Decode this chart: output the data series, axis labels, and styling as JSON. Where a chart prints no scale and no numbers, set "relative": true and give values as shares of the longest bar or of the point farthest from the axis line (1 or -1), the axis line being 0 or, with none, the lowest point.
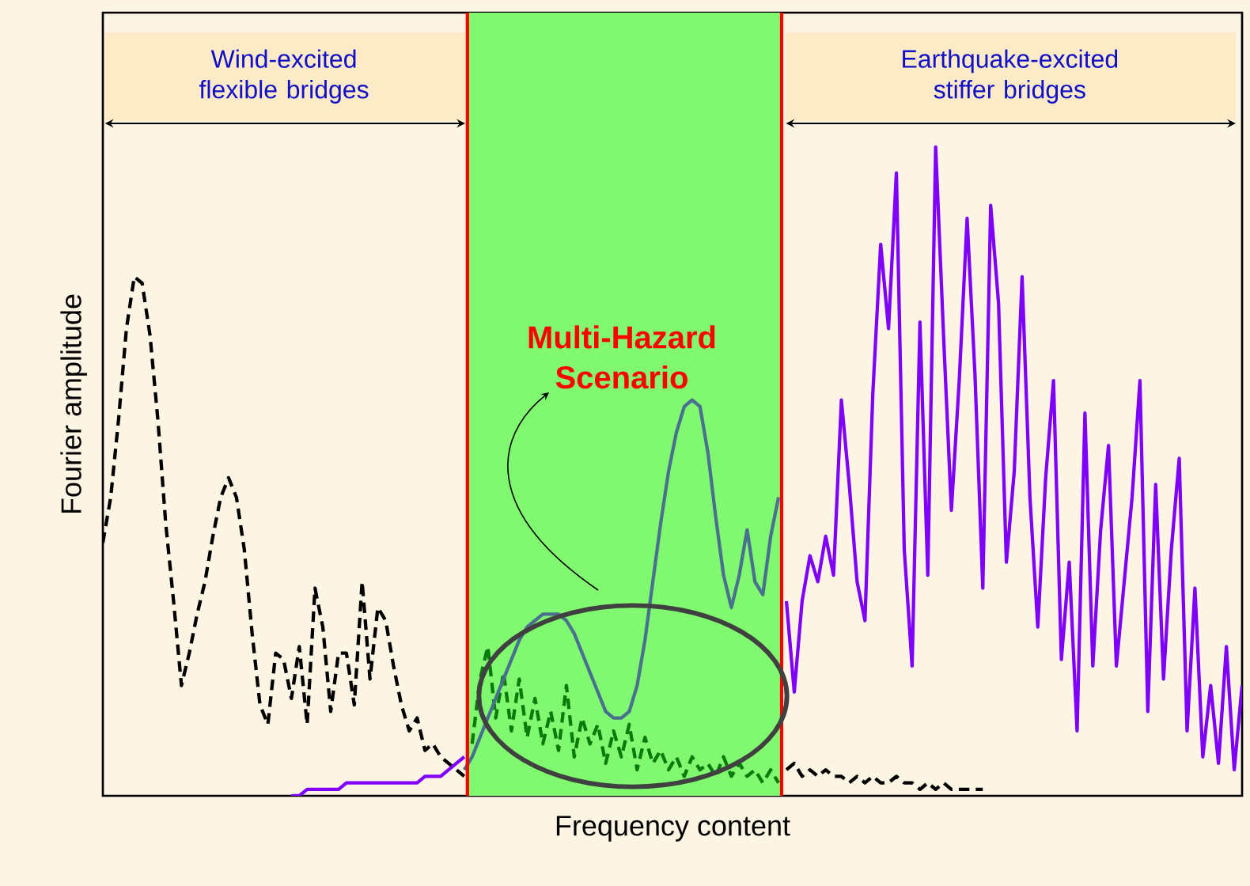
{
  "chart_data": {
    "type": "line",
    "relative": true,
    "xlabel": "Frequency content",
    "ylabel": "Fourier amplitude",
    "annotations": [
      "Wind-excited flexible bridges",
      "Earthquake-excited stiffer bridges",
      "Multi-Hazard Scenario"
    ],
    "categories": [
      null,
      null,
      null,
      null,
      null,
      null,
      null,
      null,
      null,
      null,
      null,
      null,
      null,
      null,
      null,
      null,
      null,
      null,
      null,
      null,
      null,
      null,
      null,
      null,
      null,
      null,
      null,
      null,
      null,
      null,
      null,
      null,
      null,
      null,
      null,
      null,
      null,
      null,
      null,
      null,
      null,
      null,
      null,
      null,
      null,
      null,
      null,
      null,
      null,
      null,
      null,
      null,
      null,
      null,
      null,
      null,
      null,
      null,
      null,
      null,
      null,
      null,
      null,
      null,
      null,
      null,
      null,
      null,
      null,
      null,
      null,
      null,
      null,
      null,
      null,
      null,
      null,
      null,
      null,
      null,
      null,
      null,
      null,
      null,
      null,
      null,
      null,
      null,
      null,
      null,
      null,
      null,
      null,
      null,
      null,
      null,
      null,
      null,
      null,
      null,
      null,
      null,
      null,
      null,
      null,
      null,
      null,
      null,
      null,
      null,
      null,
      null,
      null,
      null,
      null,
      null,
      null,
      null,
      null,
      null,
      null,
      null,
      null,
      null,
      null,
      null,
      null,
      null,
      null,
      null,
      null,
      null,
      null,
      null,
      null,
      null,
      null,
      null,
      null,
      null,
      null,
      null,
      null,
      null,
      null,
      null
    ],
    "series": [
      {
        "color": "#000000",
        "line_style": "dashed",
        "values": [
          0.39,
          0.46,
          0.58,
          0.72,
          0.8,
          0.79,
          0.71,
          0.58,
          0.42,
          0.3,
          0.17,
          0.22,
          0.28,
          0.33,
          0.4,
          0.46,
          0.49,
          0.46,
          0.38,
          0.25,
          0.14,
          0.11,
          0.22,
          0.21,
          0.15,
          0.23,
          0.11,
          0.32,
          0.26,
          0.13,
          0.22,
          0.22,
          0.14,
          0.33,
          0.18,
          0.29,
          0.27,
          0.2,
          0.14,
          0.1,
          0.12,
          0.07,
          0.08,
          0.06,
          0.05,
          0.04,
          0.03,
          null,
          null,
          null,
          null,
          null,
          null,
          null,
          null,
          null,
          null,
          null,
          null,
          null,
          null,
          null,
          null,
          null,
          null,
          null,
          null,
          null,
          null,
          null,
          null,
          null,
          null,
          null,
          null,
          null,
          null,
          null,
          null,
          null,
          null,
          null,
          null,
          null,
          null,
          null,
          null,
          0.04,
          0.05,
          0.03,
          0.04,
          0.03,
          0.04,
          0.03,
          0.03,
          0.02,
          0.03,
          0.02,
          0.03,
          0.02,
          0.02,
          0.03,
          0.02,
          0.02,
          0.01,
          0.02,
          0.01,
          0.02,
          0.01,
          0.01,
          0.01,
          0.01,
          0.01,
          null,
          null,
          null,
          null,
          null,
          null,
          null,
          null,
          null,
          null,
          null,
          null,
          null,
          null,
          null,
          null,
          null,
          null,
          null,
          null,
          null,
          null,
          null,
          null,
          null,
          null,
          null,
          null,
          null,
          null,
          null,
          null,
          null
        ]
      },
      {
        "color": "#8000ff",
        "line_style": "solid",
        "values": [
          null,
          null,
          null,
          null,
          null,
          null,
          null,
          null,
          null,
          null,
          null,
          null,
          null,
          null,
          null,
          null,
          null,
          null,
          null,
          null,
          null,
          null,
          null,
          null,
          0.0,
          0.0,
          0.01,
          0.01,
          0.01,
          0.01,
          0.01,
          0.02,
          0.02,
          0.02,
          0.02,
          0.02,
          0.02,
          0.02,
          0.02,
          0.02,
          0.02,
          0.03,
          0.03,
          0.03,
          0.04,
          0.05,
          0.06,
          null,
          null,
          null,
          null,
          null,
          null,
          null,
          null,
          null,
          null,
          null,
          null,
          null,
          null,
          null,
          null,
          null,
          null,
          null,
          null,
          null,
          null,
          null,
          null,
          null,
          null,
          null,
          null,
          null,
          null,
          null,
          null,
          null,
          null,
          null,
          null,
          null,
          null,
          null,
          null,
          0.3,
          0.16,
          0.3,
          0.37,
          0.33,
          0.4,
          0.34,
          0.61,
          0.48,
          0.33,
          0.27,
          0.62,
          0.85,
          0.72,
          0.96,
          0.38,
          0.2,
          0.73,
          0.34,
          1.0,
          0.71,
          0.44,
          0.64,
          0.89,
          0.65,
          0.32,
          0.91,
          0.76,
          0.36,
          0.5,
          0.8,
          0.46,
          0.26,
          0.49,
          0.64,
          0.21,
          0.36,
          0.1,
          0.59,
          0.2,
          0.41,
          0.54,
          0.2,
          0.33,
          0.46,
          0.64,
          0.13,
          0.48,
          0.18,
          0.38,
          0.52,
          0.1,
          0.32,
          0.06,
          0.17,
          0.05,
          0.23,
          0.04,
          0.17
        ]
      },
      {
        "color": "#0a7a0a",
        "line_style": "dashed",
        "values": [
          null,
          null,
          null,
          null,
          null,
          null,
          null,
          null,
          null,
          null,
          null,
          null,
          null,
          null,
          null,
          null,
          null,
          null,
          null,
          null,
          null,
          null,
          null,
          null,
          null,
          null,
          null,
          null,
          null,
          null,
          null,
          null,
          null,
          null,
          null,
          null,
          null,
          null,
          null,
          null,
          null,
          null,
          null,
          null,
          null,
          null,
          null,
          0.08,
          0.18,
          0.23,
          0.12,
          0.19,
          0.1,
          0.18,
          0.09,
          0.15,
          0.08,
          0.13,
          0.07,
          0.17,
          0.06,
          0.12,
          0.08,
          0.11,
          0.05,
          0.1,
          0.06,
          0.11,
          0.04,
          0.09,
          0.05,
          0.07,
          0.04,
          0.06,
          0.03,
          0.06,
          0.04,
          0.05,
          0.03,
          0.06,
          0.03,
          0.05,
          0.03,
          0.04,
          0.02,
          0.04,
          0.02,
          null,
          null,
          null,
          null,
          null,
          null,
          null,
          null,
          null,
          null,
          null,
          null,
          null,
          null,
          null,
          null,
          null,
          null,
          null,
          null,
          null,
          null,
          null,
          null,
          null,
          null,
          null,
          null,
          null,
          null,
          null,
          null,
          null,
          null,
          null,
          null,
          null,
          null,
          null,
          null,
          null,
          null,
          null,
          null,
          null,
          null,
          null,
          null,
          null,
          null,
          null,
          null,
          null,
          null,
          null,
          null,
          null,
          null,
          null
        ]
      },
      {
        "color": "#4a7090",
        "line_style": "solid",
        "values": [
          null,
          null,
          null,
          null,
          null,
          null,
          null,
          null,
          null,
          null,
          null,
          null,
          null,
          null,
          null,
          null,
          null,
          null,
          null,
          null,
          null,
          null,
          null,
          null,
          null,
          null,
          null,
          null,
          null,
          null,
          null,
          null,
          null,
          null,
          null,
          null,
          null,
          null,
          null,
          null,
          null,
          null,
          null,
          null,
          null,
          null,
          0.04,
          0.06,
          0.09,
          0.12,
          0.15,
          0.18,
          0.21,
          0.24,
          0.26,
          0.27,
          0.28,
          0.28,
          0.28,
          0.27,
          0.25,
          0.22,
          0.19,
          0.16,
          0.13,
          0.12,
          0.12,
          0.13,
          0.17,
          0.24,
          0.33,
          0.42,
          0.5,
          0.56,
          0.6,
          0.61,
          0.6,
          0.53,
          0.43,
          0.34,
          0.29,
          0.34,
          0.41,
          0.33,
          0.31,
          0.4,
          0.46,
          null,
          null,
          null,
          null,
          null,
          null,
          null,
          null,
          null,
          null,
          null,
          null,
          null,
          null,
          null,
          null,
          null,
          null,
          null,
          null,
          null,
          null,
          null,
          null,
          null,
          null,
          null,
          null,
          null,
          null,
          null,
          null,
          null,
          null,
          null,
          null,
          null,
          null,
          null,
          null,
          null,
          null,
          null,
          null,
          null,
          null,
          null,
          null,
          null,
          null,
          null,
          null,
          null,
          null,
          null,
          null,
          null,
          null,
          null
        ]
      }
    ]
  }
}
